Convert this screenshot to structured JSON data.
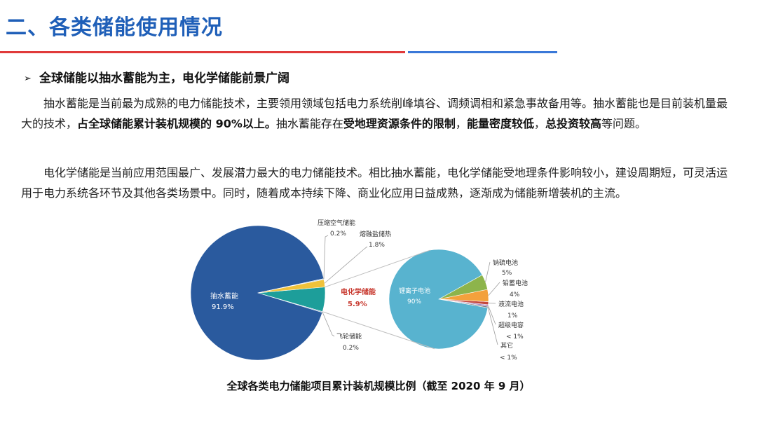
{
  "header": {
    "title": "二、各类储能使用情况",
    "bullet": "全球储能以抽水蓄能为主，电化学储能前景广阔"
  },
  "paragraphs": {
    "p1": [
      {
        "t": "抽水蓄能是当前最为成熟的电力储能技术，主要领用领域包括电力系统削峰填谷、调频调相和紧急事故备用等。抽水蓄能也是目前装机量最大的技术，",
        "b": false
      },
      {
        "t": "占全球储能累计装机规模的 90%以上。",
        "b": true
      },
      {
        "t": "抽水蓄能存在",
        "b": false
      },
      {
        "t": "受地理资源条件的限制",
        "b": true
      },
      {
        "t": "，",
        "b": false
      },
      {
        "t": "能量密度较低",
        "b": true
      },
      {
        "t": "，",
        "b": false
      },
      {
        "t": "总投资较高",
        "b": true
      },
      {
        "t": "等问题。",
        "b": false
      }
    ],
    "p2": [
      {
        "t": "电化学储能是当前应用范围最广、发展潜力最大的电力储能技术。相比抽水蓄能，电化学储能受地理条件影响较小，建设周期短，可灵活运用于电力系统各环节及其他各类场景中。同时，随着成本持续下降、商业化应用日益成熟，逐渐成为储能新增装机的主流。",
        "b": false
      }
    ]
  },
  "chart_data": [
    {
      "type": "pie",
      "title": "全球各类电力储能项目累计装机规模比例（截至 2020 年 9 月）",
      "slices": [
        {
          "name": "抽水蓄能",
          "value": 91.9,
          "label": "91.9%",
          "color": "#2a5a9e"
        },
        {
          "name": "电化学储能",
          "value": 5.9,
          "label": "5.9%",
          "color": "#1d9e9a"
        },
        {
          "name": "熔融盐储热",
          "value": 1.8,
          "label": "1.8%",
          "color": "#f0c23a"
        },
        {
          "name": "压缩空气储能",
          "value": 0.2,
          "label": "0.2%",
          "color": "#8fb7de"
        },
        {
          "name": "飞轮储能",
          "value": 0.2,
          "label": "0.2%",
          "color": "#6f8fbf"
        }
      ]
    },
    {
      "type": "pie",
      "title": "电化学储能",
      "slices": [
        {
          "name": "锂离子电池",
          "value": 90,
          "label": "90%",
          "color": "#58b3cf"
        },
        {
          "name": "钠硫电池",
          "value": 5,
          "label": "5%",
          "color": "#8db44b"
        },
        {
          "name": "铅蓄电池",
          "value": 4,
          "label": "4%",
          "color": "#f3a13c"
        },
        {
          "name": "液流电池",
          "value": 1,
          "label": "1%",
          "color": "#c4473d"
        },
        {
          "name": "超级电容",
          "value": 0.5,
          "label": "< 1%",
          "color": "#a97fc3"
        },
        {
          "name": "其它",
          "value": 0.5,
          "label": "< 1%",
          "color": "#7f7f7f"
        }
      ]
    }
  ],
  "colors": {
    "title_blue": "#1f5fb8",
    "rule_red": "#e03a3a",
    "rule_blue": "#3a78d8",
    "electro_label_red": "#c8392f"
  }
}
